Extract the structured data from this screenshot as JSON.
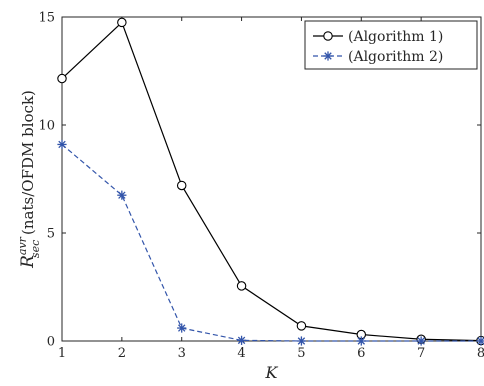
{
  "chart_data": {
    "type": "line",
    "x": [
      1,
      2,
      3,
      4,
      5,
      6,
      7,
      8
    ],
    "series": [
      {
        "name": "(Algorithm 1)",
        "color": "#000000",
        "line_style": "solid",
        "marker": "circle",
        "values": [
          12.15,
          14.75,
          7.2,
          2.55,
          0.7,
          0.3,
          0.08,
          0.02
        ]
      },
      {
        "name": "(Algorithm 2)",
        "color": "#3355aa",
        "line_style": "dashed",
        "marker": "asterisk",
        "values": [
          9.1,
          6.75,
          0.6,
          0.03,
          0.0,
          0.0,
          0.0,
          0.0
        ]
      }
    ],
    "xlim": [
      1,
      8
    ],
    "ylim": [
      0,
      15
    ],
    "xticks": [
      1,
      2,
      3,
      4,
      5,
      6,
      7,
      8
    ],
    "yticks": [
      0,
      5,
      10,
      15
    ],
    "xlabel": "K",
    "ylabel_symbol": "R",
    "ylabel_superscript": "avr",
    "ylabel_subscript": "sec",
    "ylabel_units": "(nats/OFDM block)",
    "legend_position": "top-right",
    "grid": false
  }
}
